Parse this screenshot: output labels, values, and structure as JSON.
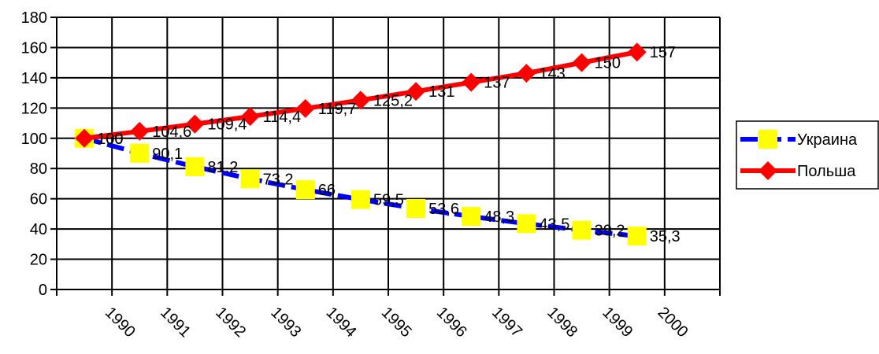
{
  "chart_data": {
    "type": "line",
    "categories": [
      "1990",
      "1991",
      "1992",
      "1993",
      "1994",
      "1995",
      "1996",
      "1997",
      "1998",
      "1999",
      "2000"
    ],
    "ylim": [
      0,
      180
    ],
    "yticks": [
      "0",
      "20",
      "40",
      "60",
      "80",
      "100",
      "120",
      "140",
      "160",
      "180"
    ],
    "grid": true,
    "legend_position": "right",
    "series": [
      {
        "name": "Украина",
        "values": [
          100,
          90.1,
          81.2,
          73.2,
          66,
          59.5,
          53.6,
          48.3,
          43.5,
          39.2,
          35.3
        ],
        "labels": [
          "100",
          "90,1",
          "81,2",
          "73,2",
          "66",
          "59,5",
          "53,6",
          "48,3",
          "43,5",
          "39,2",
          "35,3"
        ],
        "line_color": "#0000ff",
        "marker_color": "#ffff00",
        "marker": "square"
      },
      {
        "name": "Польша",
        "values": [
          100,
          104.6,
          109.4,
          114.4,
          119.7,
          125.2,
          131,
          137,
          143,
          150,
          157
        ],
        "labels": [
          "100",
          "104,6",
          "109,4",
          "114,4",
          "119,7",
          "125,2",
          "131",
          "137",
          "143",
          "150",
          "157"
        ],
        "line_color": "#ff0000",
        "marker_color": "#ff0000",
        "marker": "diamond"
      }
    ]
  }
}
